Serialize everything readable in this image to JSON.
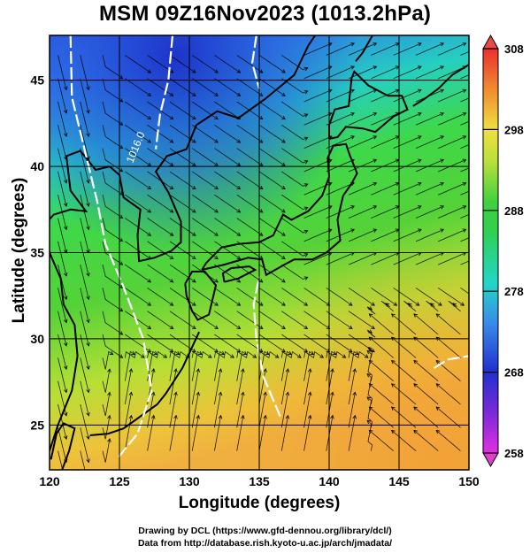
{
  "title": "MSM 09Z16Nov2023 (1013.2hPa)",
  "chart_data": {
    "type": "heatmap",
    "title": "MSM 09Z16Nov2023 (1013.2hPa)",
    "xlabel": "Longitude (degrees)",
    "ylabel": "Latitude  (degrees)",
    "xlim": [
      120,
      150
    ],
    "ylim": [
      22.4,
      47.6
    ],
    "xticks": [
      120,
      125,
      130,
      135,
      140,
      145,
      150
    ],
    "yticks": [
      25,
      30,
      35,
      40,
      45
    ],
    "xtick_labels": [
      "120",
      "125",
      "130",
      "135",
      "140",
      "145",
      "150"
    ],
    "ytick_labels": [
      "25",
      "30",
      "35",
      "40",
      "45"
    ],
    "grid": true,
    "field": "temperature",
    "colorbar": {
      "range": [
        258,
        308
      ],
      "ticks": [
        258,
        268,
        278,
        288,
        298,
        308
      ],
      "tick_labels": [
        "258",
        "268",
        "278",
        "288",
        "298",
        "308"
      ]
    },
    "contour_label": "1016.0",
    "overlays": [
      "streamlines",
      "coastlines",
      "isobar-contours"
    ]
  },
  "credits": {
    "line1": "Drawing by DCL (https://www.gfd-dennou.org/library/dcl/)",
    "line2": "Data from http://database.rish.kyoto-u.ac.jp/arch/jmadata/"
  },
  "colors": {
    "cold": "#1f3fd0",
    "warm": "#f2b33a",
    "contour": "#ffffff"
  }
}
